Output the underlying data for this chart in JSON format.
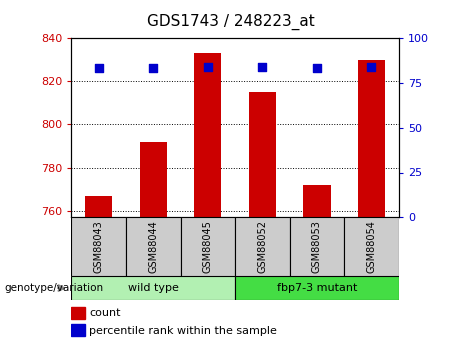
{
  "title": "GDS1743 / 248223_at",
  "samples": [
    "GSM88043",
    "GSM88044",
    "GSM88045",
    "GSM88052",
    "GSM88053",
    "GSM88054"
  ],
  "count_values": [
    767,
    792,
    833,
    815,
    772,
    830
  ],
  "percentile_values": [
    83,
    83,
    84,
    84,
    83,
    84
  ],
  "ylim_left": [
    757,
    840
  ],
  "ylim_right": [
    0,
    100
  ],
  "yticks_left": [
    760,
    780,
    800,
    820,
    840
  ],
  "yticks_right": [
    0,
    25,
    50,
    75,
    100
  ],
  "bar_color": "#cc0000",
  "dot_color": "#0000cc",
  "groups": [
    {
      "label": "wild type",
      "indices": [
        0,
        1,
        2
      ],
      "color": "#b2f0b2"
    },
    {
      "label": "fbp7-3 mutant",
      "indices": [
        3,
        4,
        5
      ],
      "color": "#44dd44"
    }
  ],
  "xlabel_area_label": "genotype/variation",
  "legend_count_label": "count",
  "legend_percentile_label": "percentile rank within the sample",
  "bar_width": 0.5,
  "dot_size": 40,
  "left_tick_color": "#cc0000",
  "right_tick_color": "#0000cc",
  "base_value": 757,
  "sample_box_color": "#cccccc",
  "fig_bg": "#ffffff"
}
